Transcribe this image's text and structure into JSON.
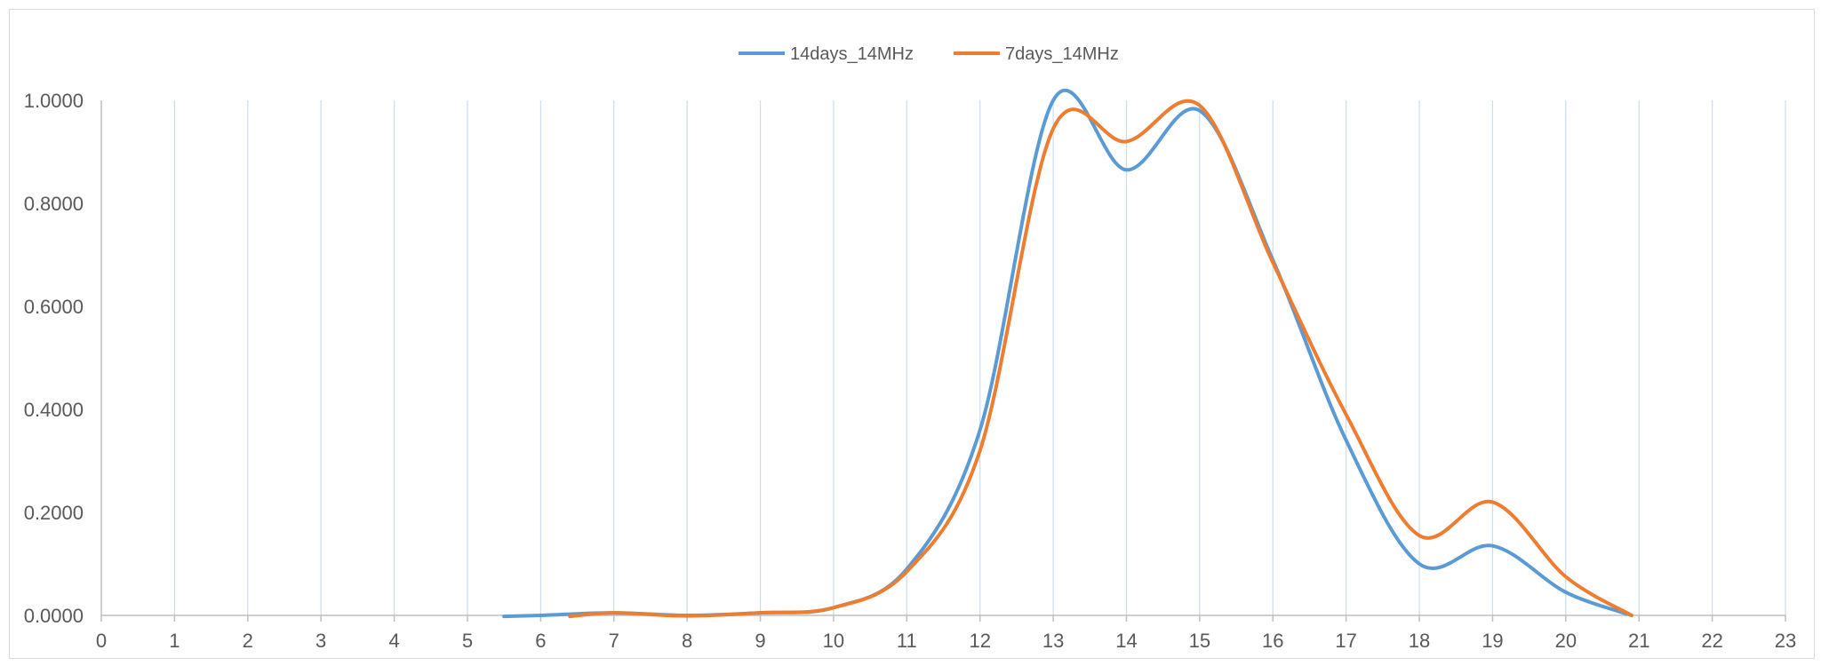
{
  "chart_data": {
    "type": "line",
    "title": "",
    "xlabel": "",
    "ylabel": "",
    "xlim": [
      0,
      23
    ],
    "ylim": [
      0,
      1
    ],
    "x_ticks": [
      0,
      1,
      2,
      3,
      4,
      5,
      6,
      7,
      8,
      9,
      10,
      11,
      12,
      13,
      14,
      15,
      16,
      17,
      18,
      19,
      20,
      21,
      22,
      23
    ],
    "y_ticks": [
      "0.0000",
      "0.2000",
      "0.4000",
      "0.6000",
      "0.8000",
      "1.0000"
    ],
    "y_tick_values": [
      0,
      0.2,
      0.4,
      0.6,
      0.8,
      1.0
    ],
    "grid": "vertical",
    "legend_position": "top-center",
    "series": [
      {
        "name": "14days_14MHz",
        "color": "#5b9bd5",
        "points": [
          [
            5.5,
            -0.002
          ],
          [
            6,
            0.0
          ],
          [
            7,
            0.005
          ],
          [
            8,
            0.0
          ],
          [
            9,
            0.005
          ],
          [
            10,
            0.015
          ],
          [
            11,
            0.09
          ],
          [
            12,
            0.36
          ],
          [
            13,
            1.0
          ],
          [
            14,
            0.865
          ],
          [
            15,
            0.98
          ],
          [
            16,
            0.69
          ],
          [
            17,
            0.34
          ],
          [
            18,
            0.1
          ],
          [
            19,
            0.135
          ],
          [
            20,
            0.045
          ],
          [
            20.9,
            0.0
          ]
        ]
      },
      {
        "name": "7days_14MHz",
        "color": "#ed7d31",
        "points": [
          [
            6.4,
            -0.002
          ],
          [
            7,
            0.005
          ],
          [
            8,
            -0.001
          ],
          [
            9,
            0.005
          ],
          [
            10,
            0.015
          ],
          [
            11,
            0.085
          ],
          [
            12,
            0.32
          ],
          [
            13,
            0.945
          ],
          [
            14,
            0.92
          ],
          [
            15,
            0.99
          ],
          [
            16,
            0.685
          ],
          [
            17,
            0.39
          ],
          [
            18,
            0.155
          ],
          [
            19,
            0.22
          ],
          [
            20,
            0.075
          ],
          [
            20.9,
            0.0
          ]
        ]
      }
    ]
  }
}
